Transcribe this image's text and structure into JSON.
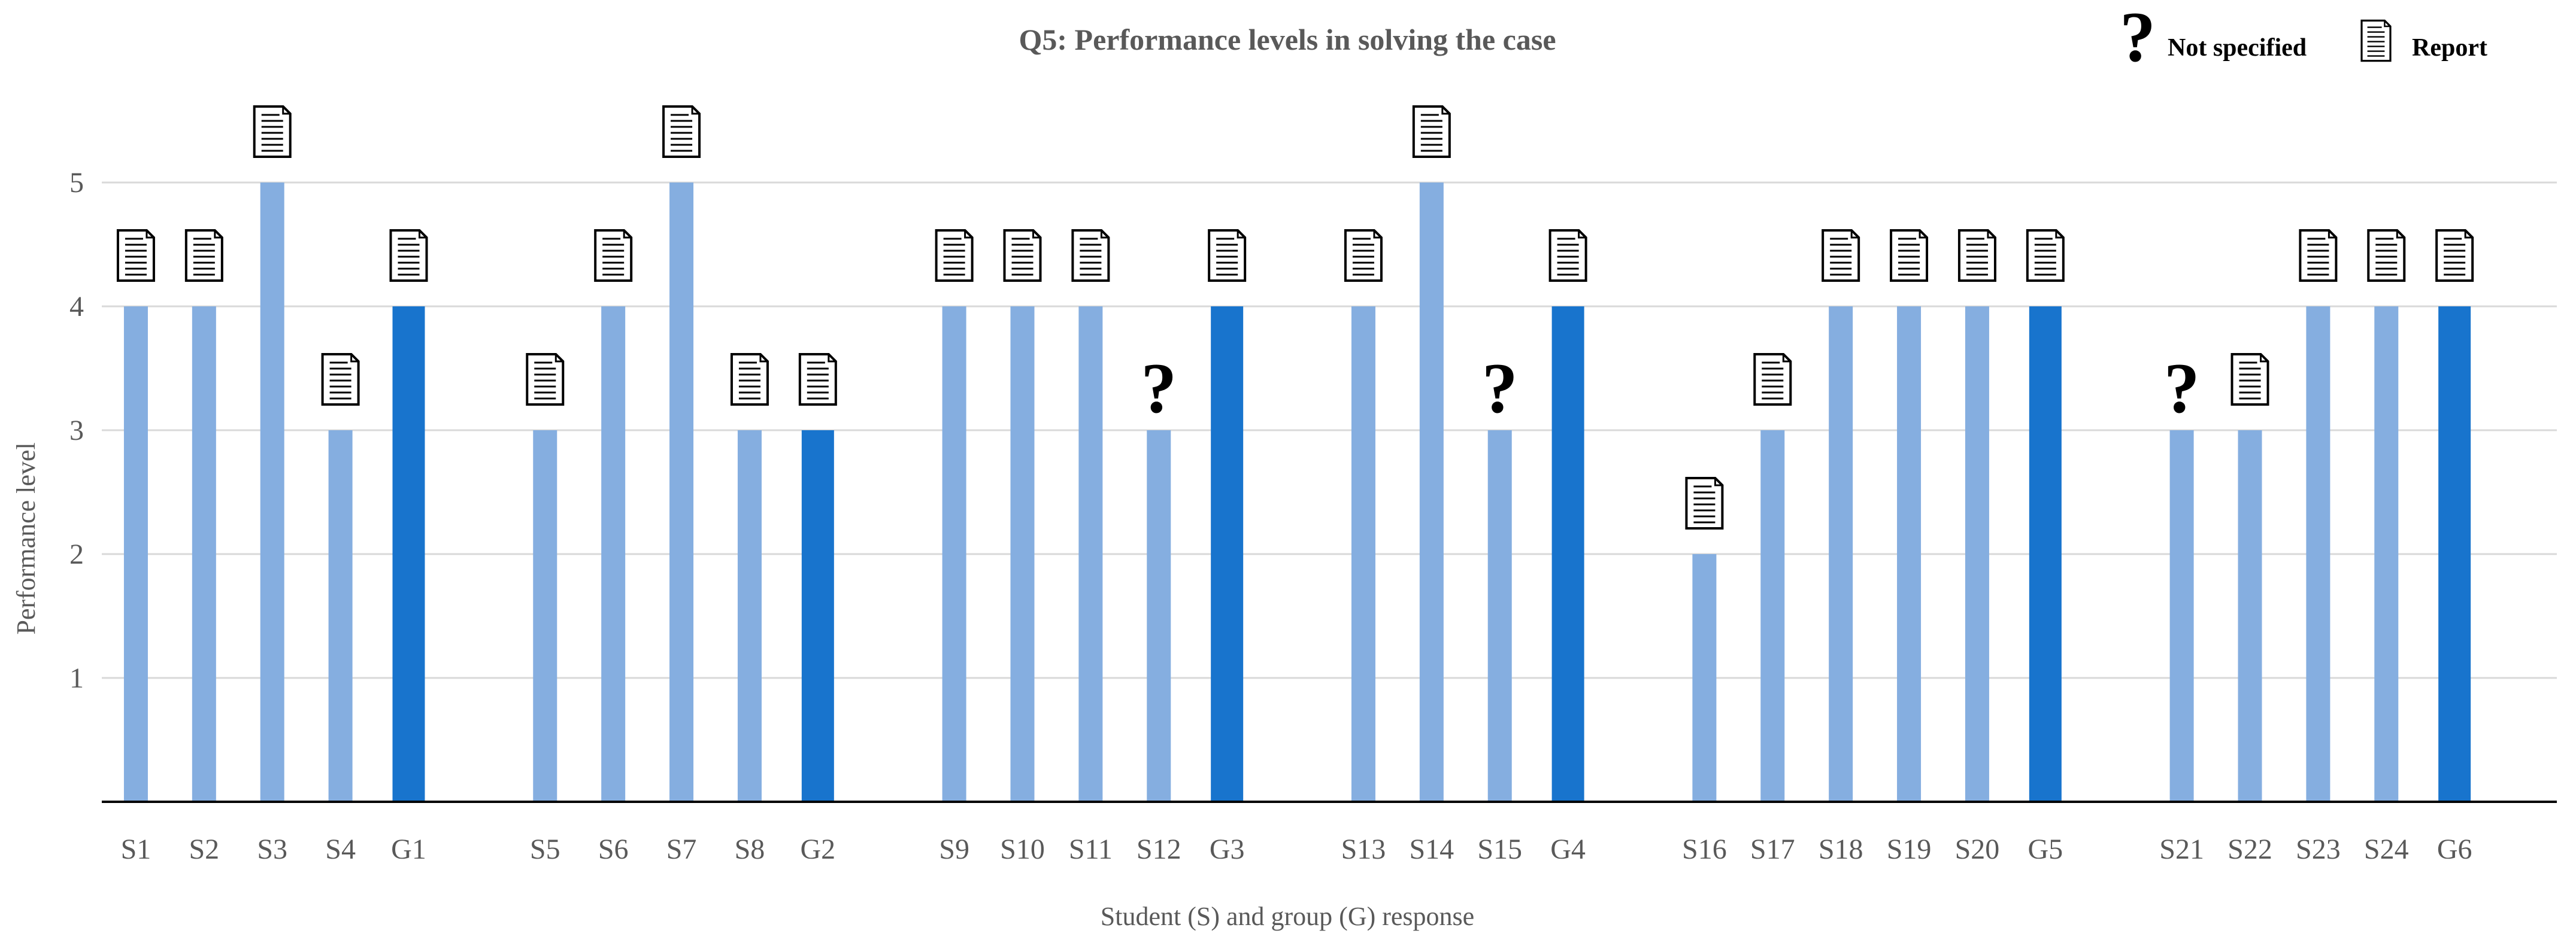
{
  "chart_data": {
    "type": "bar",
    "title": "Q5: Performance levels in solving the case",
    "xlabel": "Student (S) and group (G) response",
    "ylabel": "Performance level",
    "ylim": [
      0,
      5
    ],
    "yticks": [
      1,
      2,
      3,
      4,
      5
    ],
    "grid": true,
    "legend_position": "top-right",
    "legend": [
      {
        "label": "Not specified",
        "icon": "question-icon"
      },
      {
        "label": "Report",
        "icon": "report-icon"
      }
    ],
    "groups": [
      [
        {
          "label": "S1",
          "value": 4,
          "kind": "student",
          "marker": "report"
        },
        {
          "label": "S2",
          "value": 4,
          "kind": "student",
          "marker": "report"
        },
        {
          "label": "S3",
          "value": 5,
          "kind": "student",
          "marker": "report"
        },
        {
          "label": "S4",
          "value": 3,
          "kind": "student",
          "marker": "report"
        },
        {
          "label": "G1",
          "value": 4,
          "kind": "group",
          "marker": "report"
        }
      ],
      [
        {
          "label": "S5",
          "value": 3,
          "kind": "student",
          "marker": "report"
        },
        {
          "label": "S6",
          "value": 4,
          "kind": "student",
          "marker": "report"
        },
        {
          "label": "S7",
          "value": 5,
          "kind": "student",
          "marker": "report"
        },
        {
          "label": "S8",
          "value": 3,
          "kind": "student",
          "marker": "report"
        },
        {
          "label": "G2",
          "value": 3,
          "kind": "group",
          "marker": "report"
        }
      ],
      [
        {
          "label": "S9",
          "value": 4,
          "kind": "student",
          "marker": "report"
        },
        {
          "label": "S10",
          "value": 4,
          "kind": "student",
          "marker": "report"
        },
        {
          "label": "S11",
          "value": 4,
          "kind": "student",
          "marker": "report"
        },
        {
          "label": "S12",
          "value": 3,
          "kind": "student",
          "marker": "question"
        },
        {
          "label": "G3",
          "value": 4,
          "kind": "group",
          "marker": "report"
        }
      ],
      [
        {
          "label": "S13",
          "value": 4,
          "kind": "student",
          "marker": "report"
        },
        {
          "label": "S14",
          "value": 5,
          "kind": "student",
          "marker": "report"
        },
        {
          "label": "S15",
          "value": 3,
          "kind": "student",
          "marker": "question"
        },
        {
          "label": "G4",
          "value": 4,
          "kind": "group",
          "marker": "report"
        }
      ],
      [
        {
          "label": "S16",
          "value": 2,
          "kind": "student",
          "marker": "report"
        },
        {
          "label": "S17",
          "value": 3,
          "kind": "student",
          "marker": "report"
        },
        {
          "label": "S18",
          "value": 4,
          "kind": "student",
          "marker": "report"
        },
        {
          "label": "S19",
          "value": 4,
          "kind": "student",
          "marker": "report"
        },
        {
          "label": "S20",
          "value": 4,
          "kind": "student",
          "marker": "report"
        },
        {
          "label": "G5",
          "value": 4,
          "kind": "group",
          "marker": "report"
        }
      ],
      [
        {
          "label": "S21",
          "value": 3,
          "kind": "student",
          "marker": "question"
        },
        {
          "label": "S22",
          "value": 3,
          "kind": "student",
          "marker": "report"
        },
        {
          "label": "S23",
          "value": 4,
          "kind": "student",
          "marker": "report"
        },
        {
          "label": "S24",
          "value": 4,
          "kind": "student",
          "marker": "report"
        },
        {
          "label": "G6",
          "value": 4,
          "kind": "group",
          "marker": "report"
        }
      ]
    ],
    "colors": {
      "student": "#85AEE0",
      "group": "#1874CD",
      "grid": "#D9D9D9",
      "axis": "#000000",
      "text": "#595959"
    }
  }
}
